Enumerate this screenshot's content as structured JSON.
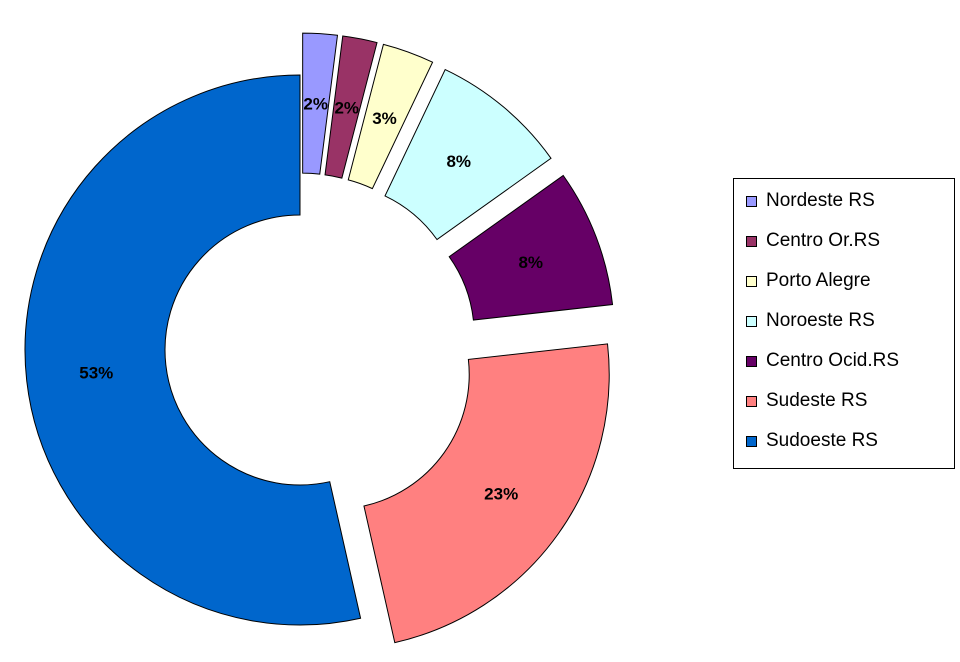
{
  "chart_data": {
    "type": "pie",
    "donut": true,
    "exploded": true,
    "slices": [
      {
        "label": "Nordeste RS",
        "value": 2,
        "value_label": "2%",
        "color": "#9999ff"
      },
      {
        "label": "Centro Or.RS",
        "value": 2,
        "value_label": "2%",
        "color": "#993366"
      },
      {
        "label": "Porto Alegre",
        "value": 3,
        "value_label": "3%",
        "color": "#ffffcc"
      },
      {
        "label": "Noroeste RS",
        "value": 8,
        "value_label": "8%",
        "color": "#ccffff"
      },
      {
        "label": "Centro Ocid.RS",
        "value": 8,
        "value_label": "8%",
        "color": "#660066"
      },
      {
        "label": "Sudeste RS",
        "value": 23,
        "value_label": "23%",
        "color": "#ff8080"
      },
      {
        "label": "Sudoeste RS",
        "value": 53,
        "value_label": "53%",
        "color": "#0066cc"
      }
    ],
    "legend": {
      "position": "right"
    }
  }
}
